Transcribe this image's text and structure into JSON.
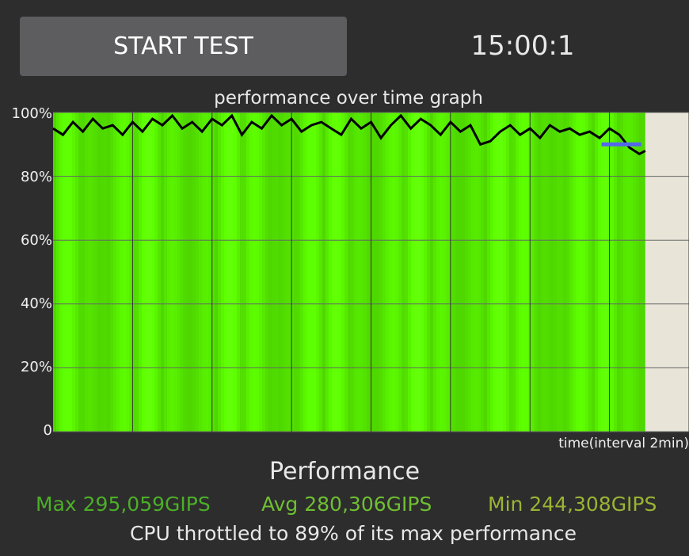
{
  "header": {
    "start_label": "START TEST",
    "timer": "15:00:1"
  },
  "graph": {
    "title": "performance over time graph",
    "y_ticks": [
      "100%",
      "80%",
      "60%",
      "40%",
      "20%",
      "0"
    ],
    "x_label": "time(interval 2min)"
  },
  "chart_data": {
    "type": "area",
    "title": "performance over time graph",
    "xlabel": "time(interval 2min)",
    "ylabel": "",
    "x_unit": "minutes",
    "xlim": [
      0,
      16
    ],
    "ylim": [
      0,
      100
    ],
    "grid": true,
    "fill_color": "#66ff00",
    "line_color": "#000000",
    "marker_color": "#5566ee",
    "marker": {
      "x_start": 13.8,
      "x_end": 14.8,
      "y": 90
    },
    "series": [
      {
        "x": [
          0.0,
          0.25,
          0.5,
          0.75,
          1.0,
          1.25,
          1.5,
          1.75,
          2.0,
          2.25,
          2.5,
          2.75,
          3.0,
          3.25,
          3.5,
          3.75,
          4.0,
          4.25,
          4.5,
          4.75,
          5.0,
          5.25,
          5.5,
          5.75,
          6.0,
          6.25,
          6.5,
          6.75,
          7.0,
          7.25,
          7.5,
          7.75,
          8.0,
          8.25,
          8.5,
          8.75,
          9.0,
          9.25,
          9.5,
          9.75,
          10.0,
          10.25,
          10.5,
          10.75,
          11.0,
          11.25,
          11.5,
          11.75,
          12.0,
          12.25,
          12.5,
          12.75,
          13.0,
          13.25,
          13.5,
          13.75,
          14.0,
          14.25,
          14.5,
          14.75,
          14.9
        ],
        "values": [
          95,
          93,
          97,
          94,
          98,
          95,
          96,
          93,
          97,
          94,
          98,
          96,
          99,
          95,
          97,
          94,
          98,
          96,
          99,
          93,
          97,
          95,
          99,
          96,
          98,
          94,
          96,
          97,
          95,
          93,
          98,
          95,
          97,
          92,
          96,
          99,
          95,
          98,
          96,
          93,
          97,
          94,
          96,
          90,
          91,
          94,
          96,
          93,
          95,
          92,
          96,
          94,
          95,
          93,
          94,
          92,
          95,
          93,
          89,
          87,
          88
        ]
      }
    ]
  },
  "summary": {
    "title": "Performance",
    "max": "Max 295,059GIPS",
    "avg": "Avg 280,306GIPS",
    "min": "Min 244,308GIPS",
    "max_color": "#4caf28",
    "avg_color": "#6fbf32",
    "min_color": "#9ab434",
    "throttle": "CPU throttled to 89% of its max performance"
  }
}
